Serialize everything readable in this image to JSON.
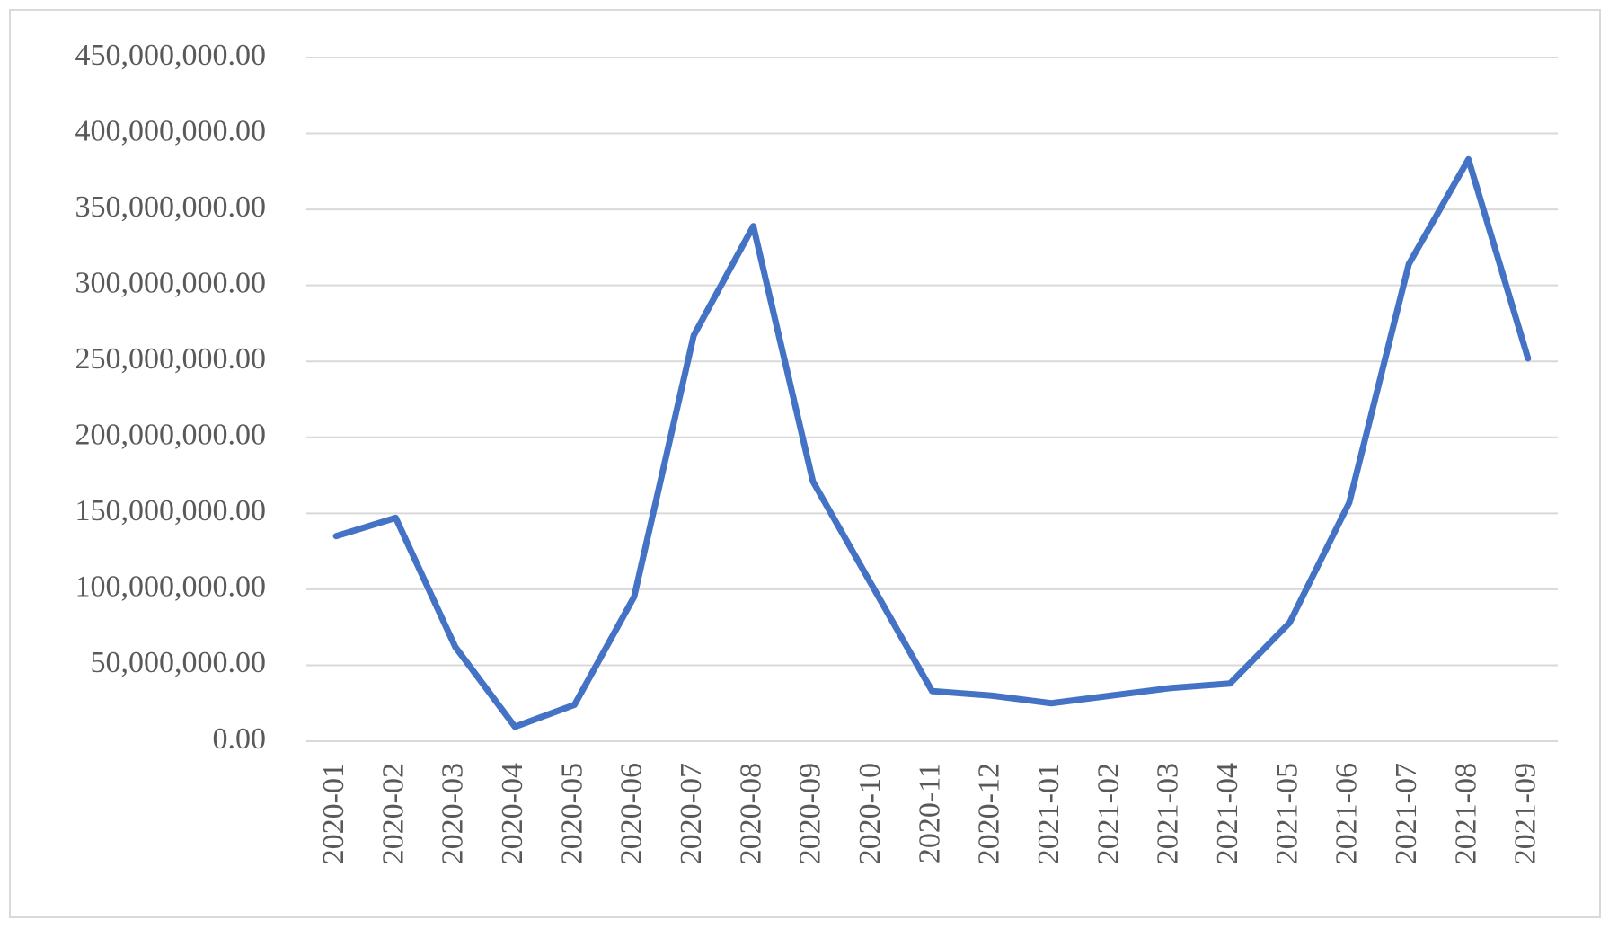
{
  "chart_data": {
    "type": "line",
    "categories": [
      "2020-01",
      "2020-02",
      "2020-03",
      "2020-04",
      "2020-05",
      "2020-06",
      "2020-07",
      "2020-08",
      "2020-09",
      "2020-10",
      "2020-11",
      "2020-12",
      "2021-01",
      "2021-02",
      "2021-03",
      "2021-04",
      "2021-05",
      "2021-06",
      "2021-07",
      "2021-08",
      "2021-09"
    ],
    "series": [
      {
        "color": "#4472c4",
        "values": [
          135000000,
          147000000,
          62000000,
          9500000,
          24000000,
          95000000,
          267000000,
          339000000,
          171000000,
          102000000,
          33000000,
          30000000,
          25000000,
          30000000,
          35000000,
          38000000,
          78000000,
          157000000,
          314000000,
          383000000,
          252000000
        ]
      }
    ],
    "ylim": [
      0,
      450000000
    ],
    "yticks": [
      {
        "value": 0,
        "label": "0.00"
      },
      {
        "value": 50000000,
        "label": "50,000,000.00"
      },
      {
        "value": 100000000,
        "label": "100,000,000.00"
      },
      {
        "value": 150000000,
        "label": "150,000,000.00"
      },
      {
        "value": 200000000,
        "label": "200,000,000.00"
      },
      {
        "value": 250000000,
        "label": "250,000,000.00"
      },
      {
        "value": 300000000,
        "label": "300,000,000.00"
      },
      {
        "value": 350000000,
        "label": "350,000,000.00"
      },
      {
        "value": 400000000,
        "label": "400,000,000.00"
      },
      {
        "value": 450000000,
        "label": "450,000,000.00"
      }
    ],
    "grid": true
  }
}
